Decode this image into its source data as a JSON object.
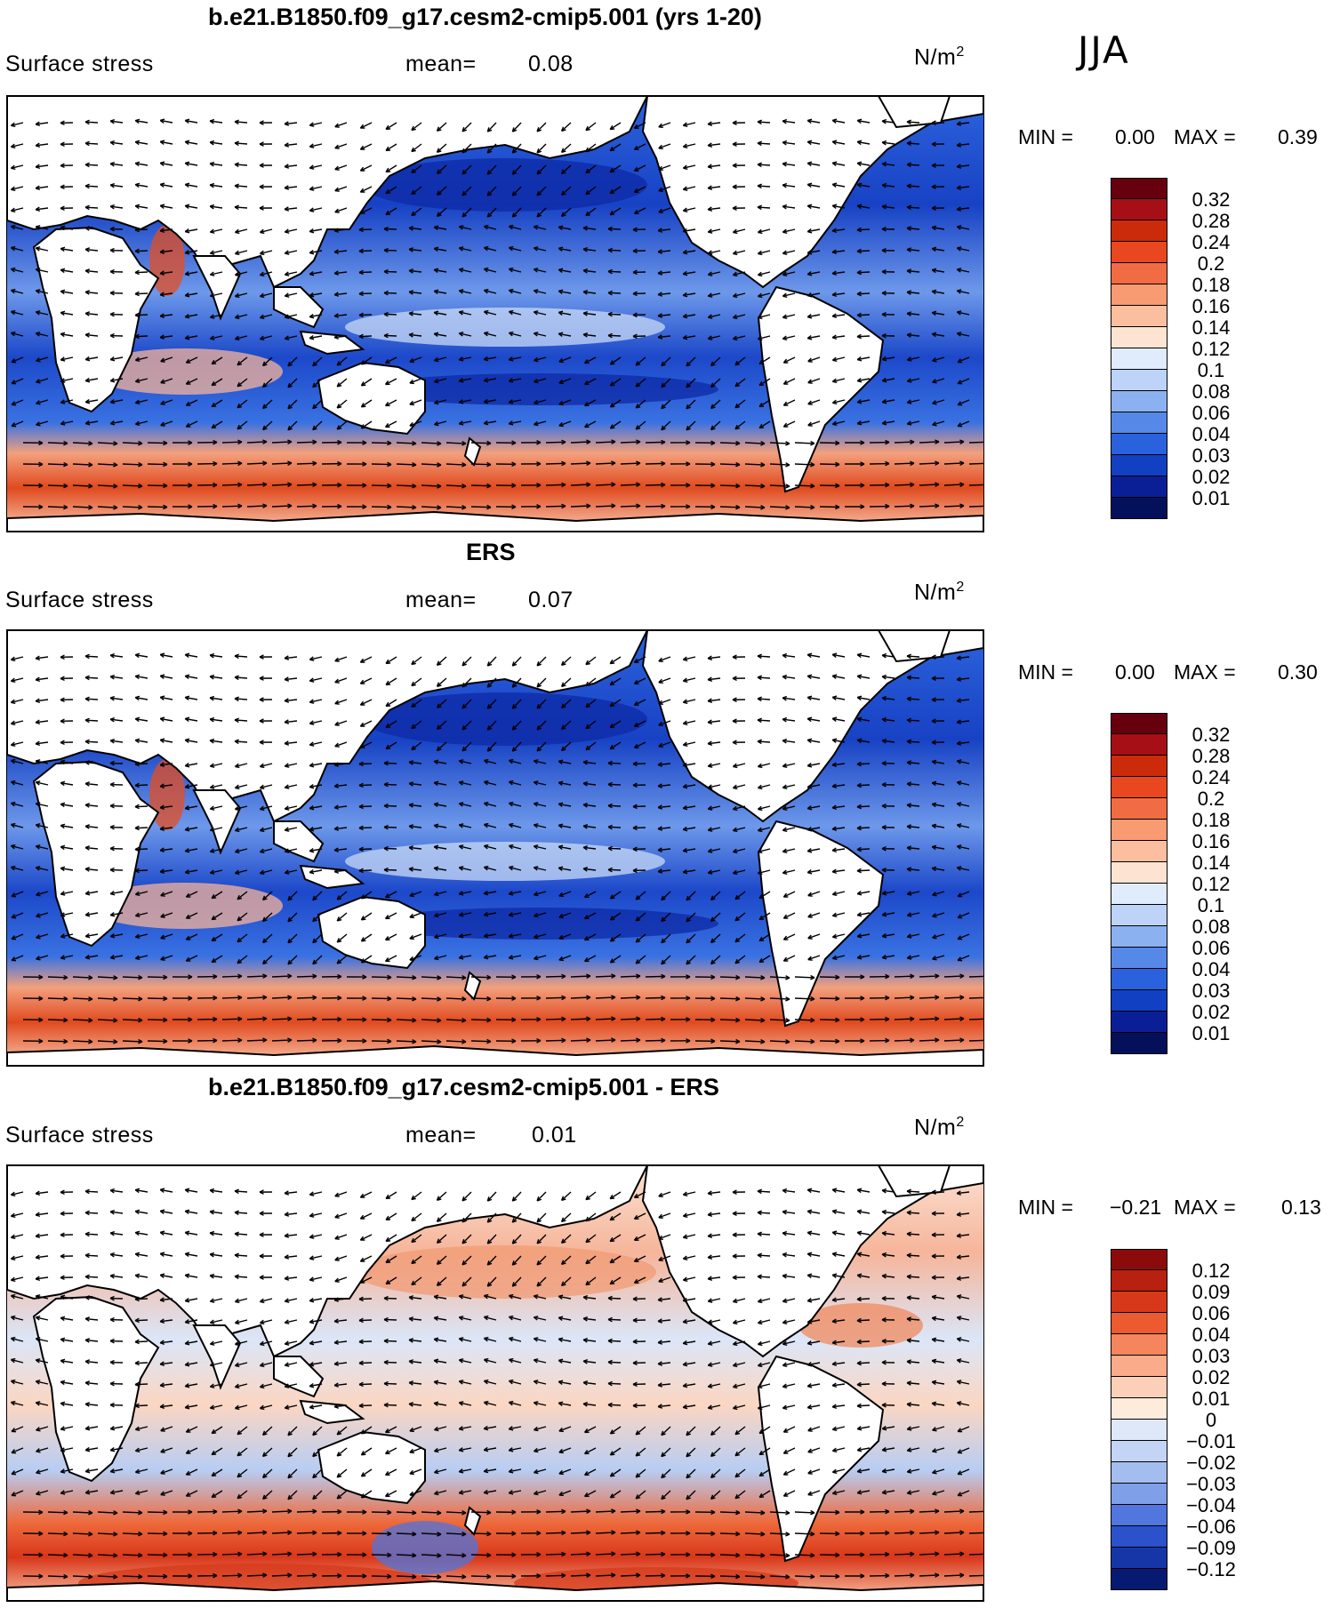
{
  "season": "JJA",
  "panels": [
    {
      "title": "b.e21.B1850.f09_g17.cesm2-cmip5.001 (yrs 1-20)",
      "variable": "Surface stress",
      "mean_label": "mean=",
      "mean_value": "0.08",
      "units": "N/m",
      "units_sup": "2",
      "min_label": "MIN =",
      "min_value": "0.00",
      "max_label": "MAX =",
      "max_value": "0.39",
      "scale": "abs",
      "colorbar_ticks": [
        "0.32",
        "0.28",
        "0.24",
        "0.2",
        "0.18",
        "0.16",
        "0.14",
        "0.12",
        "0.1",
        "0.08",
        "0.06",
        "0.04",
        "0.03",
        "0.02",
        "0.01"
      ]
    },
    {
      "title": "ERS",
      "variable": "Surface stress",
      "mean_label": "mean=",
      "mean_value": "0.07",
      "units": "N/m",
      "units_sup": "2",
      "min_label": "MIN =",
      "min_value": "0.00",
      "max_label": "MAX =",
      "max_value": "0.30",
      "scale": "abs",
      "colorbar_ticks": [
        "0.32",
        "0.28",
        "0.24",
        "0.2",
        "0.18",
        "0.16",
        "0.14",
        "0.12",
        "0.1",
        "0.08",
        "0.06",
        "0.04",
        "0.03",
        "0.02",
        "0.01"
      ]
    },
    {
      "title": "b.e21.B1850.f09_g17.cesm2-cmip5.001 - ERS",
      "variable": "Surface stress",
      "mean_label": "mean=",
      "mean_value": "0.01",
      "units": "N/m",
      "units_sup": "2",
      "min_label": "MIN =",
      "min_value": "−0.21",
      "max_label": "MAX =",
      "max_value": "0.13",
      "scale": "diff",
      "colorbar_ticks": [
        "0.12",
        "0.09",
        "0.06",
        "0.04",
        "0.03",
        "0.02",
        "0.01",
        "0",
        "−0.01",
        "−0.02",
        "−0.03",
        "−0.04",
        "−0.06",
        "−0.09",
        "−0.12"
      ]
    }
  ],
  "colors": {
    "abs_scale": [
      "#67000d",
      "#a50f15",
      "#cb2b0a",
      "#e8471f",
      "#f26c43",
      "#f89a72",
      "#fbbfa0",
      "#fde4d2",
      "#e0ecfb",
      "#bdd3f7",
      "#8cb1f0",
      "#5688e8",
      "#2a62de",
      "#1240c2",
      "#0a1f96",
      "#05105a"
    ],
    "diff_scale": [
      "#8b0a0a",
      "#b8200f",
      "#d8381a",
      "#ec5a2f",
      "#f5855c",
      "#f9ab8a",
      "#fcd0b8",
      "#fdebdc",
      "#dfe8f8",
      "#c3d4f4",
      "#a4bdef",
      "#7f9fe8",
      "#5176dd",
      "#2b52cb",
      "#1636a8",
      "#071a72"
    ]
  }
}
